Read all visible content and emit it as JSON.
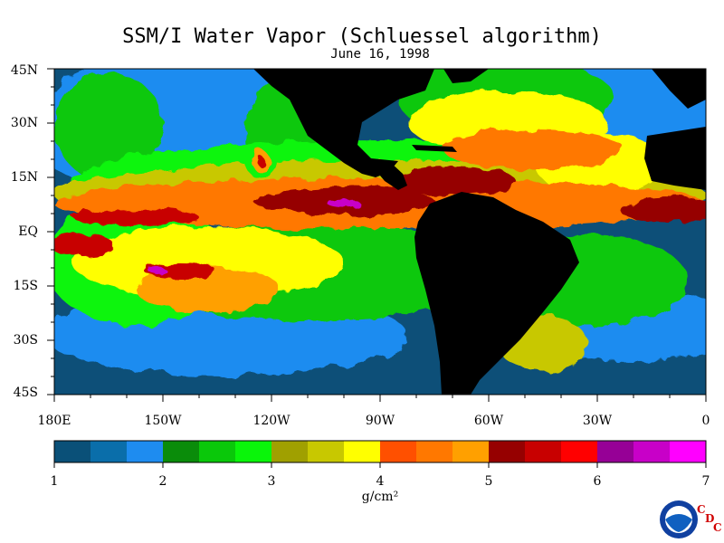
{
  "title": "SSM/I Water Vapor (Schluessel algorithm)",
  "date": "June 16, 1998",
  "lat_labels": [
    "45N",
    "30N",
    "15N",
    "EQ",
    "15S",
    "30S",
    "45S"
  ],
  "lon_labels": [
    "180E",
    "150W",
    "120W",
    "90W",
    "60W",
    "30W",
    "0"
  ],
  "colorbar": {
    "ticks": [
      "1",
      "2",
      "3",
      "4",
      "5",
      "6",
      "7"
    ],
    "unit": "g/cm²",
    "colors": [
      "#0a5078",
      "#0a6eaa",
      "#1e8cf0",
      "#0a8c0a",
      "#0ac80a",
      "#0af50a",
      "#a0a000",
      "#c8c800",
      "#ffff00",
      "#ff5000",
      "#ff7800",
      "#ffa000",
      "#960000",
      "#c80000",
      "#ff0000",
      "#960096",
      "#c800c8",
      "#ff00ff"
    ]
  },
  "colors": {
    "land": "#000000",
    "low": "#0a5078",
    "mid_low": "#1e8cf0",
    "green": "#0ac80a",
    "yellow": "#ffff00",
    "orange": "#ff7800",
    "red": "#c80000",
    "magenta": "#c800c8"
  },
  "logo": {
    "agency": "NOAA",
    "lab_letters": [
      "C",
      "D",
      "C"
    ]
  }
}
